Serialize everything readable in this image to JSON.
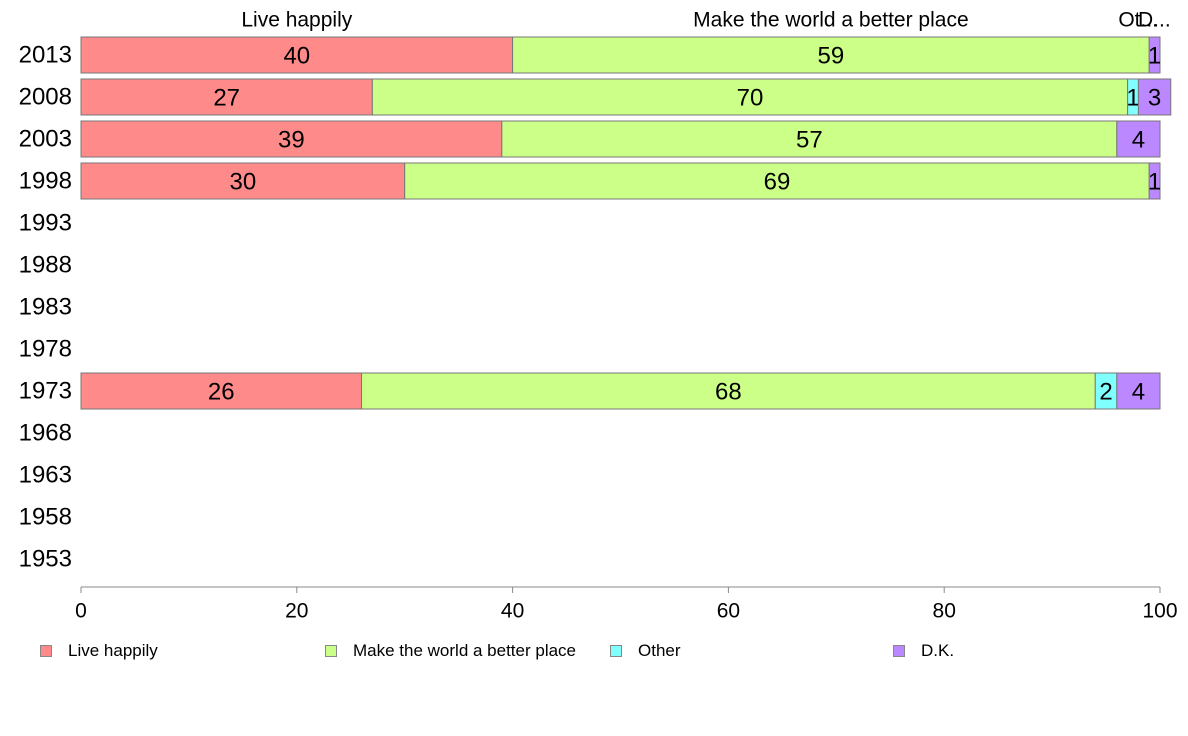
{
  "chart_data": {
    "type": "bar",
    "orientation": "horizontal",
    "stacked": true,
    "categories": [
      "2013",
      "2008",
      "2003",
      "1998",
      "1993",
      "1988",
      "1983",
      "1978",
      "1973",
      "1968",
      "1963",
      "1958",
      "1953"
    ],
    "series": [
      {
        "name": "Live happily",
        "color": "#ff8a8a",
        "values": [
          40,
          27,
          39,
          30,
          null,
          null,
          null,
          null,
          26,
          null,
          null,
          null,
          null
        ]
      },
      {
        "name": "Make the world a better place",
        "color": "#ccff88",
        "values": [
          59,
          70,
          57,
          69,
          null,
          null,
          null,
          null,
          68,
          null,
          null,
          null,
          null
        ]
      },
      {
        "name": "Other",
        "color": "#80ffff",
        "values": [
          0,
          1,
          0,
          0,
          null,
          null,
          null,
          null,
          2,
          null,
          null,
          null,
          null
        ]
      },
      {
        "name": "D.K.",
        "color": "#bb88ff",
        "values": [
          1,
          3,
          4,
          1,
          null,
          null,
          null,
          null,
          4,
          null,
          null,
          null,
          null
        ]
      }
    ],
    "top_labels": [
      "Live happily",
      "Make the world a better place",
      "Ot...",
      "D..."
    ],
    "xlim": [
      0,
      100
    ],
    "xticks": [
      0,
      20,
      40,
      60,
      80,
      100
    ],
    "xlabel": "",
    "ylabel": "",
    "legend_position": "bottom",
    "grid": false
  }
}
